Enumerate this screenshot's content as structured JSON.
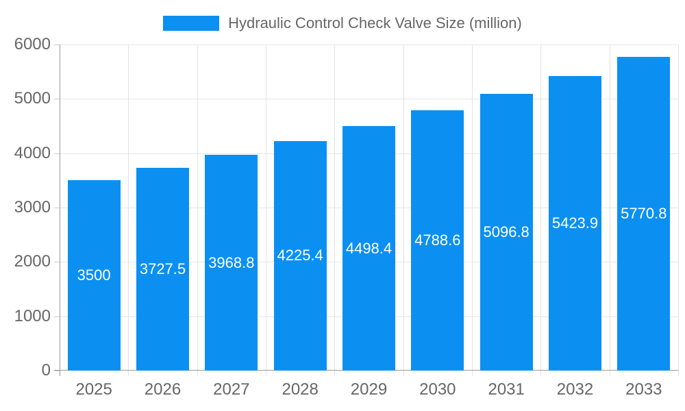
{
  "chart_data": {
    "type": "bar",
    "title": "Hydraulic Control Check Valve Size (million)",
    "categories": [
      "2025",
      "2026",
      "2027",
      "2028",
      "2029",
      "2030",
      "2031",
      "2032",
      "2033"
    ],
    "values": [
      3500,
      3727.5,
      3968.8,
      4225.4,
      4498.4,
      4788.6,
      5096.8,
      5423.9,
      5770.8
    ],
    "value_labels": [
      "3500",
      "3727.5",
      "3968.8",
      "4225.4",
      "4498.4",
      "4788.6",
      "5096.8",
      "5423.9",
      "5770.8"
    ],
    "xlabel": "",
    "ylabel": "",
    "ylim": [
      0,
      6000
    ],
    "yticks": [
      "0",
      "1000",
      "2000",
      "3000",
      "4000",
      "5000",
      "6000"
    ],
    "grid": true,
    "legend_position": "top-center",
    "bar_color": "#0b90f2",
    "bar_label_color": "#ffffff",
    "axis_label_color": "#666666",
    "gridline_color": "#e6e6e6",
    "axis_line_color": "#9a9a9a"
  }
}
